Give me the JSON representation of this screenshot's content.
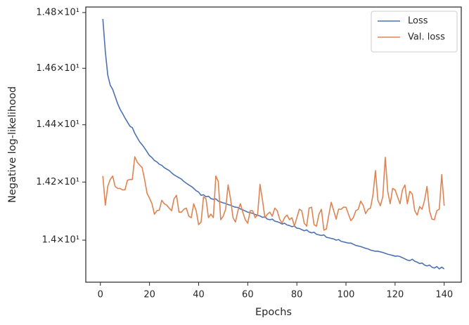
{
  "chart_data": {
    "type": "line",
    "xlabel": "Epochs",
    "ylabel": "Negative log-likelihood",
    "x": [
      1,
      2,
      3,
      4,
      5,
      6,
      7,
      8,
      9,
      10,
      11,
      12,
      13,
      14,
      15,
      16,
      17,
      18,
      19,
      20,
      21,
      22,
      23,
      24,
      25,
      26,
      27,
      28,
      29,
      30,
      31,
      32,
      33,
      34,
      35,
      36,
      37,
      38,
      39,
      40,
      41,
      42,
      43,
      44,
      45,
      46,
      47,
      48,
      49,
      50,
      51,
      52,
      53,
      54,
      55,
      56,
      57,
      58,
      59,
      60,
      61,
      62,
      63,
      64,
      65,
      66,
      67,
      68,
      69,
      70,
      71,
      72,
      73,
      74,
      75,
      76,
      77,
      78,
      79,
      80,
      81,
      82,
      83,
      84,
      85,
      86,
      87,
      88,
      89,
      90,
      91,
      92,
      93,
      94,
      95,
      96,
      97,
      98,
      99,
      100,
      101,
      102,
      103,
      104,
      105,
      106,
      107,
      108,
      109,
      110,
      111,
      112,
      113,
      114,
      115,
      116,
      117,
      118,
      119,
      120,
      121,
      122,
      123,
      124,
      125,
      126,
      127,
      128,
      129,
      130,
      131,
      132,
      133,
      134,
      135,
      136,
      137,
      138,
      139,
      140
    ],
    "series": [
      {
        "name": "Loss",
        "color": "#4c72b0",
        "values": [
          14.777,
          14.66,
          14.576,
          14.54,
          14.525,
          14.5,
          14.475,
          14.455,
          14.44,
          14.424,
          14.41,
          14.395,
          14.39,
          14.37,
          14.355,
          14.34,
          14.33,
          14.318,
          14.305,
          14.292,
          14.285,
          14.275,
          14.27,
          14.262,
          14.258,
          14.25,
          14.245,
          14.24,
          14.232,
          14.225,
          14.22,
          14.215,
          14.21,
          14.202,
          14.196,
          14.19,
          14.185,
          14.178,
          14.17,
          14.165,
          14.154,
          14.156,
          14.149,
          14.151,
          14.143,
          14.14,
          14.142,
          14.134,
          14.131,
          14.128,
          14.126,
          14.122,
          14.12,
          14.116,
          14.113,
          14.112,
          14.107,
          14.104,
          14.1,
          14.096,
          14.094,
          14.092,
          14.088,
          14.085,
          14.083,
          14.078,
          14.08,
          14.072,
          14.07,
          14.072,
          14.065,
          14.063,
          14.06,
          14.055,
          14.058,
          14.052,
          14.05,
          14.046,
          14.048,
          14.041,
          14.04,
          14.036,
          14.032,
          14.035,
          14.028,
          14.025,
          14.027,
          14.02,
          14.018,
          14.016,
          14.018,
          14.01,
          14.008,
          14.006,
          14.004,
          14.0,
          14.002,
          13.996,
          13.994,
          13.992,
          13.99,
          13.99,
          13.986,
          13.982,
          13.98,
          13.978,
          13.975,
          13.972,
          13.97,
          13.966,
          13.964,
          13.962,
          13.962,
          13.96,
          13.958,
          13.955,
          13.952,
          13.95,
          13.948,
          13.945,
          13.946,
          13.944,
          13.94,
          13.936,
          13.932,
          13.93,
          13.935,
          13.928,
          13.925,
          13.92,
          13.922,
          13.915,
          13.912,
          13.915,
          13.908,
          13.905,
          13.91,
          13.902,
          13.908,
          13.902
        ]
      },
      {
        "name": "Val. loss",
        "color": "#dd8452",
        "values": [
          14.221,
          14.12,
          14.185,
          14.209,
          14.221,
          14.185,
          14.178,
          14.178,
          14.173,
          14.173,
          14.206,
          14.209,
          14.209,
          14.288,
          14.269,
          14.259,
          14.25,
          14.209,
          14.161,
          14.144,
          14.125,
          14.089,
          14.101,
          14.103,
          14.137,
          14.125,
          14.12,
          14.11,
          14.101,
          14.142,
          14.154,
          14.096,
          14.096,
          14.106,
          14.11,
          14.082,
          14.077,
          14.125,
          14.101,
          14.053,
          14.062,
          14.149,
          14.142,
          14.077,
          14.089,
          14.077,
          14.221,
          14.202,
          14.07,
          14.082,
          14.106,
          14.19,
          14.142,
          14.077,
          14.062,
          14.101,
          14.125,
          14.096,
          14.07,
          14.058,
          14.101,
          14.101,
          14.077,
          14.086,
          14.192,
          14.137,
          14.077,
          14.089,
          14.096,
          14.082,
          14.11,
          14.101,
          14.072,
          14.058,
          14.077,
          14.086,
          14.07,
          14.077,
          14.048,
          14.077,
          14.106,
          14.101,
          14.058,
          14.048,
          14.11,
          14.113,
          14.053,
          14.048,
          14.089,
          14.106,
          14.034,
          14.038,
          14.086,
          14.13,
          14.101,
          14.072,
          14.106,
          14.106,
          14.113,
          14.113,
          14.089,
          14.067,
          14.077,
          14.101,
          14.106,
          14.134,
          14.12,
          14.091,
          14.106,
          14.11,
          14.156,
          14.24,
          14.137,
          14.118,
          14.149,
          14.286,
          14.168,
          14.125,
          14.178,
          14.173,
          14.149,
          14.125,
          14.173,
          14.19,
          14.125,
          14.168,
          14.158,
          14.101,
          14.086,
          14.115,
          14.106,
          14.137,
          14.185,
          14.101,
          14.072,
          14.07,
          14.101,
          14.106,
          14.226,
          14.118
        ]
      }
    ],
    "xlim": [
      -5.95,
      146.95
    ],
    "xticks": [
      0,
      20,
      40,
      60,
      80,
      100,
      120,
      140
    ],
    "ylim": [
      13.857,
      14.82
    ],
    "ylog": true,
    "yticks": [
      {
        "value": 14.0,
        "label": "1.4×10¹"
      },
      {
        "value": 14.2,
        "label": "1.42×10¹"
      },
      {
        "value": 14.4,
        "label": "1.44×10¹"
      },
      {
        "value": 14.6,
        "label": "1.46×10¹"
      },
      {
        "value": 14.8,
        "label": "1.48×10¹"
      }
    ],
    "grid": false,
    "legend": "upper right"
  }
}
